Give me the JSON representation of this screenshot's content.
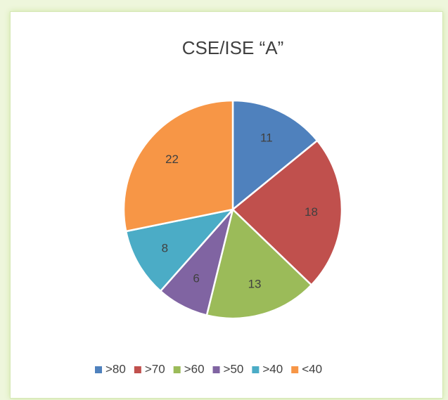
{
  "chart_data": {
    "type": "pie",
    "title": "CSE/ISE “A”",
    "categories": [
      ">80",
      ">70",
      ">60",
      ">50",
      ">40",
      "<40"
    ],
    "values": [
      11,
      18,
      13,
      6,
      8,
      22
    ],
    "colors": [
      "#4f81bd",
      "#c0504d",
      "#9bbb59",
      "#8064a2",
      "#4bacc6",
      "#f79646"
    ],
    "legend": "bottom"
  }
}
